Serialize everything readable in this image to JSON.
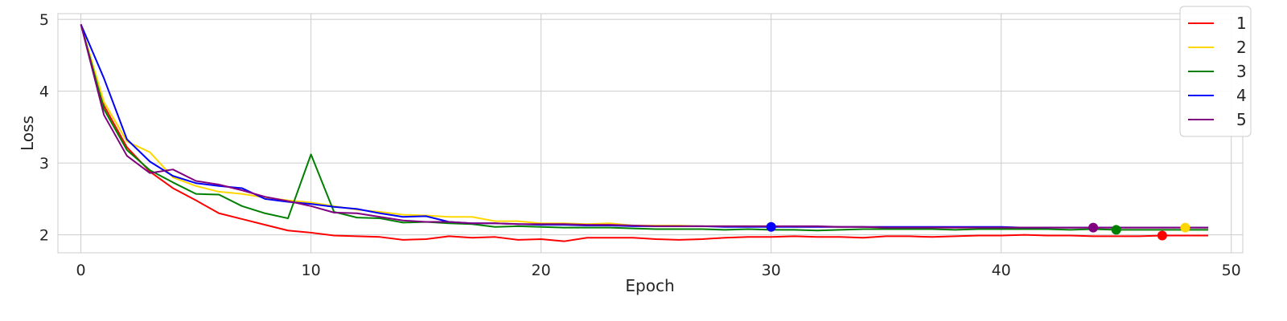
{
  "chart_data": {
    "type": "line",
    "xlabel": "Epoch",
    "ylabel": "Loss",
    "xlim": [
      -1,
      50.5
    ],
    "ylim": [
      1.75,
      5.08
    ],
    "xticks": [
      0,
      10,
      20,
      30,
      40,
      50
    ],
    "yticks": [
      2,
      3,
      4,
      5
    ],
    "grid": true,
    "legend_position": "top-right",
    "x": [
      0,
      1,
      2,
      3,
      4,
      5,
      6,
      7,
      8,
      9,
      10,
      11,
      12,
      13,
      14,
      15,
      16,
      17,
      18,
      19,
      20,
      21,
      22,
      23,
      24,
      25,
      26,
      27,
      28,
      29,
      30,
      31,
      32,
      33,
      34,
      35,
      36,
      37,
      38,
      39,
      40,
      41,
      42,
      43,
      44,
      45,
      46,
      47,
      48,
      49
    ],
    "series": [
      {
        "name": "1",
        "color": "#ff0000",
        "values": [
          4.93,
          3.8,
          3.22,
          2.88,
          2.65,
          2.48,
          2.3,
          2.22,
          2.14,
          2.06,
          2.03,
          1.99,
          1.98,
          1.97,
          1.93,
          1.94,
          1.98,
          1.96,
          1.97,
          1.93,
          1.94,
          1.91,
          1.96,
          1.96,
          1.96,
          1.94,
          1.93,
          1.94,
          1.96,
          1.97,
          1.97,
          1.98,
          1.97,
          1.97,
          1.96,
          1.98,
          1.98,
          1.97,
          1.98,
          1.99,
          1.99,
          2.0,
          1.99,
          1.99,
          1.98,
          1.98,
          1.98,
          1.99,
          1.99,
          1.99
        ],
        "best": {
          "epoch": 47,
          "value": 1.99
        }
      },
      {
        "name": "2",
        "color": "#ffd700",
        "values": [
          4.93,
          3.85,
          3.3,
          3.15,
          2.8,
          2.68,
          2.6,
          2.57,
          2.52,
          2.48,
          2.45,
          2.4,
          2.35,
          2.32,
          2.28,
          2.27,
          2.25,
          2.25,
          2.19,
          2.19,
          2.16,
          2.16,
          2.15,
          2.16,
          2.13,
          2.13,
          2.13,
          2.12,
          2.12,
          2.12,
          2.12,
          2.11,
          2.11,
          2.11,
          2.11,
          2.1,
          2.1,
          2.1,
          2.1,
          2.1,
          2.1,
          2.1,
          2.1,
          2.1,
          2.1,
          2.1,
          2.1,
          2.1,
          2.1,
          2.1
        ],
        "best": {
          "epoch": 48,
          "value": 2.1
        }
      },
      {
        "name": "3",
        "color": "#008000",
        "values": [
          4.93,
          3.75,
          3.18,
          2.9,
          2.73,
          2.57,
          2.56,
          2.4,
          2.3,
          2.23,
          3.12,
          2.32,
          2.24,
          2.23,
          2.17,
          2.18,
          2.16,
          2.15,
          2.11,
          2.12,
          2.11,
          2.1,
          2.1,
          2.1,
          2.09,
          2.08,
          2.08,
          2.08,
          2.07,
          2.08,
          2.07,
          2.07,
          2.06,
          2.07,
          2.08,
          2.08,
          2.08,
          2.08,
          2.07,
          2.08,
          2.08,
          2.08,
          2.08,
          2.07,
          2.08,
          2.07,
          2.07,
          2.07,
          2.07,
          2.07
        ],
        "best": {
          "epoch": 45,
          "value": 2.07
        }
      },
      {
        "name": "4",
        "color": "#0000ff",
        "values": [
          4.93,
          4.18,
          3.33,
          3.02,
          2.82,
          2.72,
          2.68,
          2.65,
          2.5,
          2.46,
          2.43,
          2.39,
          2.36,
          2.3,
          2.25,
          2.26,
          2.18,
          2.16,
          2.16,
          2.15,
          2.14,
          2.14,
          2.13,
          2.13,
          2.12,
          2.12,
          2.12,
          2.12,
          2.11,
          2.11,
          2.11,
          2.11,
          2.11,
          2.11,
          2.11,
          2.11,
          2.11,
          2.11,
          2.11,
          2.11,
          2.11,
          2.1,
          2.1,
          2.1,
          2.1,
          2.1,
          2.1,
          2.1,
          2.1,
          2.1
        ],
        "best": {
          "epoch": 30,
          "value": 2.11
        }
      },
      {
        "name": "5",
        "color": "#800080",
        "values": [
          4.93,
          3.67,
          3.1,
          2.86,
          2.91,
          2.75,
          2.7,
          2.62,
          2.53,
          2.47,
          2.4,
          2.31,
          2.3,
          2.25,
          2.2,
          2.18,
          2.18,
          2.16,
          2.16,
          2.15,
          2.15,
          2.15,
          2.14,
          2.14,
          2.13,
          2.12,
          2.12,
          2.12,
          2.12,
          2.12,
          2.12,
          2.12,
          2.12,
          2.11,
          2.11,
          2.1,
          2.1,
          2.1,
          2.1,
          2.1,
          2.1,
          2.1,
          2.1,
          2.1,
          2.1,
          2.1,
          2.1,
          2.1,
          2.1,
          2.1
        ],
        "best": {
          "epoch": 44,
          "value": 2.1
        }
      }
    ]
  }
}
